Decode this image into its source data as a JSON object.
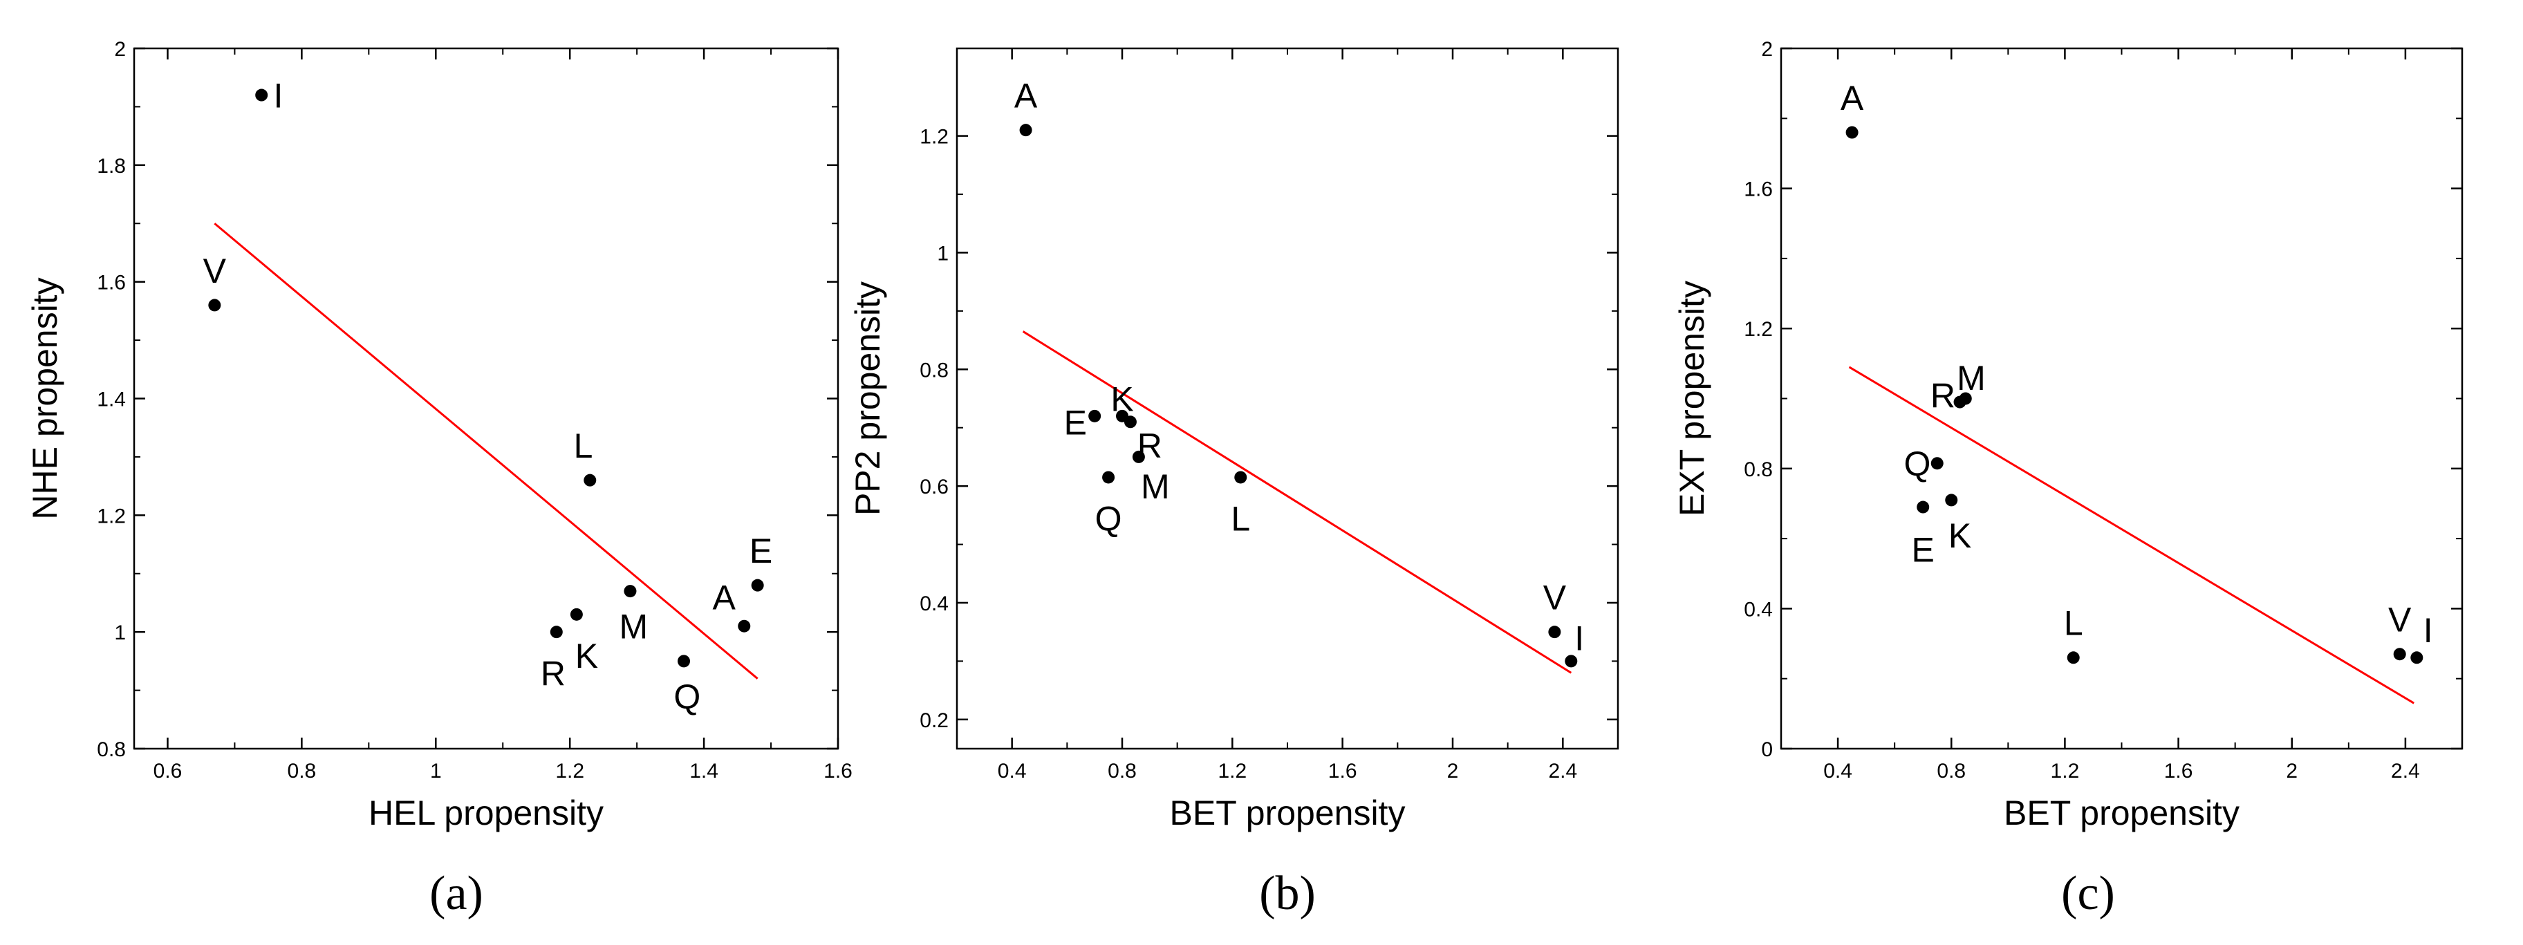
{
  "chart_data": [
    {
      "type": "scatter",
      "caption": "(a)",
      "xlabel": "HEL propensity",
      "ylabel": "NHE propensity",
      "xlim": [
        0.55,
        1.6
      ],
      "ylim": [
        0.8,
        2.0
      ],
      "xticks": [
        0.6,
        0.8,
        1,
        1.2,
        1.4,
        1.6
      ],
      "xtick_labels": [
        "0.6",
        "0.8",
        "1",
        "1.2",
        "1.4",
        "1.6"
      ],
      "yticks": [
        0.8,
        1,
        1.2,
        1.4,
        1.6,
        1.8,
        2
      ],
      "ytick_labels": [
        "0.8",
        "1",
        "1.2",
        "1.4",
        "1.6",
        "1.8",
        "2"
      ],
      "line_color": "#ff0000",
      "fit_line": [
        [
          0.67,
          1.7
        ],
        [
          1.48,
          0.92
        ]
      ],
      "points": [
        {
          "label": "I",
          "x": 0.74,
          "y": 1.92,
          "dx": 0.025,
          "dy": 0.0
        },
        {
          "label": "V",
          "x": 0.67,
          "y": 1.56,
          "dx": 0.0,
          "dy": 0.06
        },
        {
          "label": "L",
          "x": 1.23,
          "y": 1.26,
          "dx": -0.01,
          "dy": 0.06
        },
        {
          "label": "M",
          "x": 1.29,
          "y": 1.07,
          "dx": 0.005,
          "dy": -0.06
        },
        {
          "label": "K",
          "x": 1.21,
          "y": 1.03,
          "dx": 0.015,
          "dy": -0.07
        },
        {
          "label": "R",
          "x": 1.18,
          "y": 1.0,
          "dx": -0.005,
          "dy": -0.07
        },
        {
          "label": "Q",
          "x": 1.37,
          "y": 0.95,
          "dx": 0.005,
          "dy": -0.06
        },
        {
          "label": "A",
          "x": 1.46,
          "y": 1.01,
          "dx": -0.03,
          "dy": 0.05
        },
        {
          "label": "E",
          "x": 1.48,
          "y": 1.08,
          "dx": 0.005,
          "dy": 0.06
        }
      ]
    },
    {
      "type": "scatter",
      "caption": "(b)",
      "xlabel": "BET propensity",
      "ylabel": "PP2 propensity",
      "xlim": [
        0.2,
        2.6
      ],
      "ylim": [
        0.15,
        1.35
      ],
      "xticks": [
        0.4,
        0.8,
        1.2,
        1.6,
        2.0,
        2.4
      ],
      "xtick_labels": [
        "0.4",
        "0.8",
        "1.2",
        "1.6",
        "2",
        "2.4"
      ],
      "yticks": [
        0.2,
        0.4,
        0.6,
        0.8,
        1.0,
        1.2
      ],
      "ytick_labels": [
        "0.2",
        "0.4",
        "0.6",
        "0.8",
        "1",
        "1.2"
      ],
      "line_color": "#ff0000",
      "fit_line": [
        [
          0.44,
          0.865
        ],
        [
          2.43,
          0.28
        ]
      ],
      "points": [
        {
          "label": "A",
          "x": 0.45,
          "y": 1.21,
          "dx": 0.0,
          "dy": 0.06
        },
        {
          "label": "K",
          "x": 0.8,
          "y": 0.72,
          "dx": 0.0,
          "dy": 0.03
        },
        {
          "label": "E",
          "x": 0.7,
          "y": 0.72,
          "dx": -0.07,
          "dy": -0.01
        },
        {
          "label": "R",
          "x": 0.83,
          "y": 0.71,
          "dx": 0.07,
          "dy": -0.04
        },
        {
          "label": "M",
          "x": 0.86,
          "y": 0.65,
          "dx": 0.06,
          "dy": -0.05
        },
        {
          "label": "Q",
          "x": 0.75,
          "y": 0.615,
          "dx": 0.0,
          "dy": -0.07
        },
        {
          "label": "L",
          "x": 1.23,
          "y": 0.615,
          "dx": 0.0,
          "dy": -0.07
        },
        {
          "label": "V",
          "x": 2.37,
          "y": 0.35,
          "dx": 0.0,
          "dy": 0.06
        },
        {
          "label": "I",
          "x": 2.43,
          "y": 0.3,
          "dx": 0.03,
          "dy": 0.04
        }
      ]
    },
    {
      "type": "scatter",
      "caption": "(c)",
      "xlabel": "BET propensity",
      "ylabel": "EXT propensity",
      "xlim": [
        0.2,
        2.6
      ],
      "ylim": [
        0.0,
        2.0
      ],
      "xticks": [
        0.4,
        0.8,
        1.2,
        1.6,
        2.0,
        2.4
      ],
      "xtick_labels": [
        "0.4",
        "0.8",
        "1.2",
        "1.6",
        "2",
        "2.4"
      ],
      "yticks": [
        0.0,
        0.4,
        0.8,
        1.2,
        1.6,
        2.0
      ],
      "ytick_labels": [
        "0",
        "0.4",
        "0.8",
        "1.2",
        "1.6",
        "2"
      ],
      "line_color": "#ff0000",
      "fit_line": [
        [
          0.44,
          1.09
        ],
        [
          2.43,
          0.13
        ]
      ],
      "points": [
        {
          "label": "A",
          "x": 0.45,
          "y": 1.76,
          "dx": 0.0,
          "dy": 0.1
        },
        {
          "label": "M",
          "x": 0.85,
          "y": 1.0,
          "dx": 0.02,
          "dy": 0.06
        },
        {
          "label": "R",
          "x": 0.83,
          "y": 0.99,
          "dx": -0.06,
          "dy": 0.02
        },
        {
          "label": "Q",
          "x": 0.75,
          "y": 0.815,
          "dx": -0.07,
          "dy": 0.0
        },
        {
          "label": "K",
          "x": 0.8,
          "y": 0.71,
          "dx": 0.03,
          "dy": -0.1
        },
        {
          "label": "E",
          "x": 0.7,
          "y": 0.69,
          "dx": 0.0,
          "dy": -0.12
        },
        {
          "label": "L",
          "x": 1.23,
          "y": 0.26,
          "dx": 0.0,
          "dy": 0.1
        },
        {
          "label": "V",
          "x": 2.38,
          "y": 0.27,
          "dx": 0.0,
          "dy": 0.1
        },
        {
          "label": "I",
          "x": 2.44,
          "y": 0.26,
          "dx": 0.04,
          "dy": 0.08
        }
      ]
    }
  ]
}
